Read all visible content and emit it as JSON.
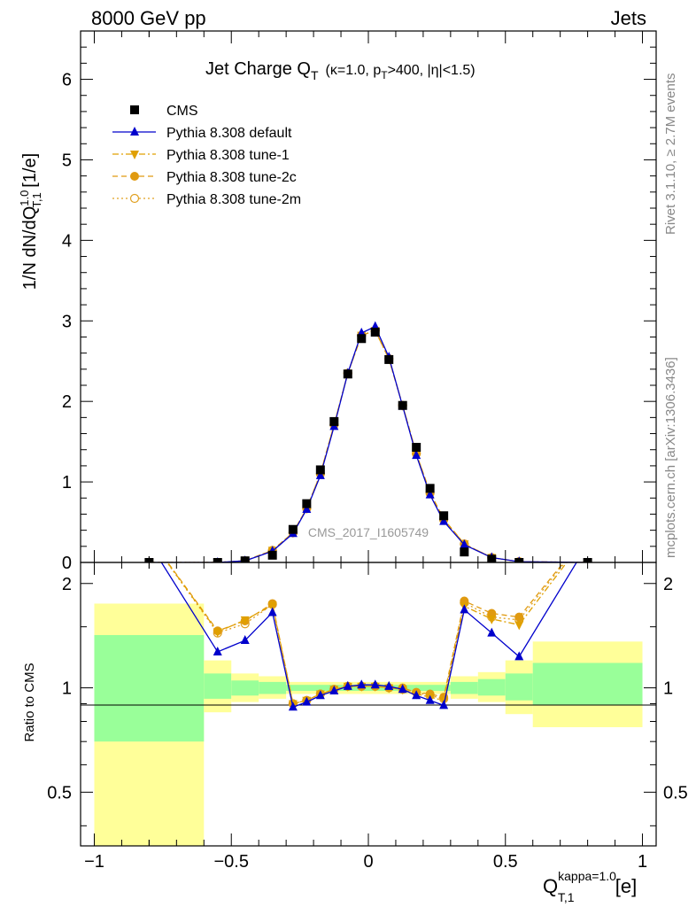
{
  "header": {
    "left": "8000 GeV pp",
    "right": "Jets"
  },
  "side": {
    "rivet": "Rivet 3.1.10, ≥ 2.7M events",
    "mcplots": "mcplots.cern.ch [arXiv:1306.3436]"
  },
  "watermark": "CMS_2017_I1605749",
  "title": {
    "main": "Jet Charge Q",
    "main_sub": "T",
    "paren": "(κ=1.0, p",
    "paren_sub": "T",
    "paren_rest": ">400, |η|<1.5)"
  },
  "ylabel": {
    "a": "1/N dN/dQ",
    "sup": "1.0",
    "sub": "T,1",
    "b": " [1/e]"
  },
  "ratio_ylabel": "Ratio to CMS",
  "xlabel": {
    "a": "Q",
    "sup": "kappa=1.0",
    "sub": "T,1",
    "b": " [e]"
  },
  "legend": [
    {
      "label": "CMS",
      "marker": "square",
      "color": "#000000",
      "dash": "none"
    },
    {
      "label": "Pythia 8.308 default",
      "marker": "triangle-up",
      "color": "#0000cc",
      "dash": "solid"
    },
    {
      "label": "Pythia 8.308 tune-1",
      "marker": "triangle-down",
      "color": "#e0a000",
      "dash": "dashdot"
    },
    {
      "label": "Pythia 8.308 tune-2c",
      "marker": "circle",
      "color": "#e09a10",
      "dash": "dashed"
    },
    {
      "label": "Pythia 8.308 tune-2m",
      "marker": "circle-open",
      "color": "#e0a020",
      "dash": "dotted"
    }
  ],
  "chart_data": {
    "type": "line",
    "main": {
      "xlim": [
        -1.05,
        1.05
      ],
      "ylim": [
        0,
        6.6
      ],
      "yticks": [
        0,
        1,
        2,
        3,
        4,
        5,
        6
      ],
      "xticks": [
        -1,
        -0.5,
        0,
        0.5,
        1
      ],
      "xtick_labels": [
        "−1",
        "−0.5",
        "0",
        "0.5",
        "1"
      ],
      "series": [
        {
          "name": "CMS",
          "x": [
            -0.8,
            -0.55,
            -0.45,
            -0.35,
            -0.275,
            -0.225,
            -0.175,
            -0.125,
            -0.075,
            -0.025,
            0.025,
            0.075,
            0.125,
            0.175,
            0.225,
            0.275,
            0.35,
            0.45,
            0.55,
            0.8
          ],
          "values": [
            0.0,
            0.0,
            0.02,
            0.09,
            0.41,
            0.73,
            1.15,
            1.75,
            2.34,
            2.78,
            2.86,
            2.52,
            1.95,
            1.43,
            0.92,
            0.58,
            0.13,
            0.04,
            0.0,
            0.0
          ]
        },
        {
          "name": "Pythia 8.308 default",
          "x": [
            -0.8,
            -0.55,
            -0.45,
            -0.35,
            -0.275,
            -0.225,
            -0.175,
            -0.125,
            -0.075,
            -0.025,
            0.025,
            0.075,
            0.125,
            0.175,
            0.225,
            0.275,
            0.35,
            0.45,
            0.55,
            0.8
          ],
          "values": [
            0.0,
            0.0,
            0.02,
            0.14,
            0.36,
            0.66,
            1.08,
            1.69,
            2.35,
            2.85,
            2.93,
            2.55,
            1.94,
            1.33,
            0.84,
            0.51,
            0.22,
            0.06,
            0.01,
            0.0
          ]
        },
        {
          "name": "Pythia 8.308 tune-1",
          "x": [
            -0.8,
            -0.55,
            -0.45,
            -0.35,
            -0.275,
            -0.225,
            -0.175,
            -0.125,
            -0.075,
            -0.025,
            0.025,
            0.075,
            0.125,
            0.175,
            0.225,
            0.275,
            0.35,
            0.45,
            0.55,
            0.8
          ],
          "values": [
            0.0,
            0.0,
            0.02,
            0.15,
            0.37,
            0.67,
            1.1,
            1.71,
            2.35,
            2.82,
            2.88,
            2.53,
            1.95,
            1.35,
            0.86,
            0.53,
            0.23,
            0.06,
            0.01,
            0.0
          ]
        },
        {
          "name": "Pythia 8.308 tune-2c",
          "x": [
            -0.8,
            -0.55,
            -0.45,
            -0.35,
            -0.275,
            -0.225,
            -0.175,
            -0.125,
            -0.075,
            -0.025,
            0.025,
            0.075,
            0.125,
            0.175,
            0.225,
            0.275,
            0.35,
            0.45,
            0.55,
            0.8
          ],
          "values": [
            0.0,
            0.0,
            0.02,
            0.15,
            0.37,
            0.67,
            1.1,
            1.71,
            2.35,
            2.82,
            2.88,
            2.53,
            1.95,
            1.35,
            0.87,
            0.54,
            0.23,
            0.06,
            0.01,
            0.0
          ]
        },
        {
          "name": "Pythia 8.308 tune-2m",
          "x": [
            -0.8,
            -0.55,
            -0.45,
            -0.35,
            -0.275,
            -0.225,
            -0.175,
            -0.125,
            -0.075,
            -0.025,
            0.025,
            0.075,
            0.125,
            0.175,
            0.225,
            0.275,
            0.35,
            0.45,
            0.55,
            0.8
          ],
          "values": [
            0.0,
            0.0,
            0.02,
            0.15,
            0.37,
            0.67,
            1.1,
            1.71,
            2.35,
            2.82,
            2.88,
            2.53,
            1.95,
            1.35,
            0.86,
            0.53,
            0.23,
            0.06,
            0.01,
            0.0
          ]
        }
      ]
    },
    "ratio": {
      "ylim": [
        0.35,
        2.3
      ],
      "scale": "log",
      "yticks": [
        0.5,
        1,
        2
      ],
      "ytick_labels": [
        "0.5",
        "1",
        "2"
      ],
      "bands": [
        {
          "x0": -1.0,
          "x1": -0.6,
          "inner": [
            0.7,
            1.42
          ],
          "outer": [
            0.35,
            1.75
          ]
        },
        {
          "x0": -0.6,
          "x1": -0.5,
          "inner": [
            0.93,
            1.1
          ],
          "outer": [
            0.85,
            1.2
          ]
        },
        {
          "x0": -0.5,
          "x1": -0.4,
          "inner": [
            0.95,
            1.05
          ],
          "outer": [
            0.91,
            1.1
          ]
        },
        {
          "x0": -0.4,
          "x1": -0.3,
          "inner": [
            0.96,
            1.04
          ],
          "outer": [
            0.93,
            1.08
          ]
        },
        {
          "x0": -0.3,
          "x1": 0.3,
          "inner": [
            0.98,
            1.02
          ],
          "outer": [
            0.96,
            1.04
          ]
        },
        {
          "x0": 0.3,
          "x1": 0.4,
          "inner": [
            0.96,
            1.04
          ],
          "outer": [
            0.93,
            1.08
          ]
        },
        {
          "x0": 0.4,
          "x1": 0.5,
          "inner": [
            0.95,
            1.06
          ],
          "outer": [
            0.91,
            1.11
          ]
        },
        {
          "x0": 0.5,
          "x1": 0.6,
          "inner": [
            0.92,
            1.1
          ],
          "outer": [
            0.84,
            1.2
          ]
        },
        {
          "x0": 0.6,
          "x1": 1.0,
          "inner": [
            0.89,
            1.18
          ],
          "outer": [
            0.77,
            1.36
          ]
        }
      ],
      "series": [
        {
          "name": "Pythia 8.308 default",
          "x": [
            -0.9,
            -0.55,
            -0.45,
            -0.35,
            -0.275,
            -0.225,
            -0.175,
            -0.125,
            -0.075,
            -0.025,
            0.025,
            0.075,
            0.125,
            0.175,
            0.225,
            0.275,
            0.35,
            0.45,
            0.55,
            0.9
          ],
          "values": [
            3.5,
            1.27,
            1.37,
            1.65,
            0.88,
            0.91,
            0.95,
            0.98,
            1.01,
            1.02,
            1.02,
            1.01,
            0.99,
            0.95,
            0.92,
            0.89,
            1.68,
            1.44,
            1.23,
            3.5
          ]
        },
        {
          "name": "Pythia 8.308 tune-1",
          "x": [
            -0.9,
            -0.55,
            -0.45,
            -0.35,
            -0.275,
            -0.225,
            -0.175,
            -0.125,
            -0.075,
            -0.025,
            0.025,
            0.075,
            0.125,
            0.175,
            0.225,
            0.275,
            0.35,
            0.45,
            0.55,
            0.9
          ],
          "values": [
            3.5,
            1.45,
            1.57,
            1.73,
            0.9,
            0.92,
            0.96,
            0.99,
            1.01,
            1.01,
            1.01,
            1.0,
            0.99,
            0.96,
            0.94,
            0.92,
            1.72,
            1.58,
            1.52,
            3.5
          ]
        },
        {
          "name": "Pythia 8.308 tune-2c",
          "x": [
            -0.9,
            -0.55,
            -0.45,
            -0.35,
            -0.275,
            -0.225,
            -0.175,
            -0.125,
            -0.075,
            -0.025,
            0.025,
            0.075,
            0.125,
            0.175,
            0.225,
            0.275,
            0.35,
            0.45,
            0.55,
            0.9
          ],
          "values": [
            3.5,
            1.46,
            1.56,
            1.75,
            0.9,
            0.92,
            0.96,
            0.99,
            1.01,
            1.01,
            1.01,
            1.0,
            1.0,
            0.97,
            0.96,
            0.94,
            1.78,
            1.64,
            1.6,
            3.5
          ]
        },
        {
          "name": "Pythia 8.308 tune-2m",
          "x": [
            -0.9,
            -0.55,
            -0.45,
            -0.35,
            -0.275,
            -0.225,
            -0.175,
            -0.125,
            -0.075,
            -0.025,
            0.025,
            0.075,
            0.125,
            0.175,
            0.225,
            0.275,
            0.35,
            0.45,
            0.55,
            0.9
          ],
          "values": [
            3.5,
            1.44,
            1.53,
            1.74,
            0.9,
            0.92,
            0.96,
            0.99,
            1.01,
            1.01,
            1.01,
            1.0,
            0.99,
            0.97,
            0.95,
            0.93,
            1.76,
            1.6,
            1.57,
            3.5
          ]
        }
      ]
    }
  }
}
